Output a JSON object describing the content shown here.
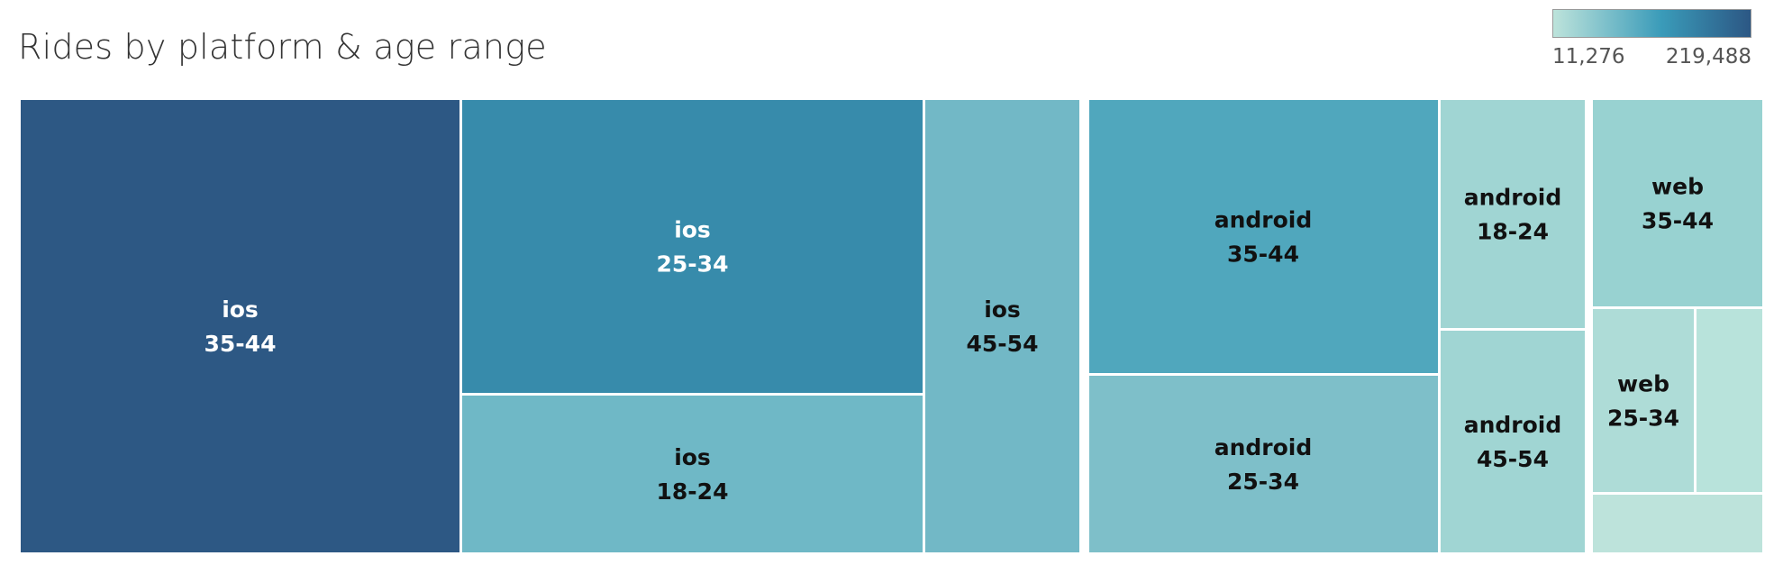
{
  "title": "Rides by platform & age range",
  "legend": {
    "min_label": "11,276",
    "max_label": "219,488",
    "color_low": "#bde3db",
    "color_mid": "#3a9bb9",
    "color_high": "#2c5784"
  },
  "chart_data": {
    "type": "treemap",
    "title": "Rides by platform & age range",
    "color_range": [
      11276,
      219488
    ],
    "groups": [
      {
        "name": "ios",
        "tiles": [
          {
            "platform": "ios",
            "age": "35-44",
            "value": 219488,
            "color": "#2d5884",
            "text_color": "#ffffff"
          },
          {
            "platform": "ios",
            "age": "25-34",
            "value": 146000,
            "color": "#378bab",
            "text_color": "#ffffff"
          },
          {
            "platform": "ios",
            "age": "18-24",
            "value": 79000,
            "color": "#6fb8c6",
            "text_color": "#111111"
          },
          {
            "platform": "ios",
            "age": "45-54",
            "value": 75000,
            "color": "#72b8c6",
            "text_color": "#111111"
          }
        ]
      },
      {
        "name": "android",
        "tiles": [
          {
            "platform": "android",
            "age": "35-44",
            "value": 105000,
            "color": "#50a7bd",
            "text_color": "#111111"
          },
          {
            "platform": "android",
            "age": "25-34",
            "value": 70000,
            "color": "#7ebfc9",
            "text_color": "#111111"
          },
          {
            "platform": "android",
            "age": "18-24",
            "value": 36000,
            "color": "#a0d5d3",
            "text_color": "#111111"
          },
          {
            "platform": "android",
            "age": "45-54",
            "value": 35000,
            "color": "#a0d5d3",
            "text_color": "#111111"
          }
        ]
      },
      {
        "name": "web",
        "tiles": [
          {
            "platform": "web",
            "age": "35-44",
            "value": 27000,
            "color": "#98d2d1",
            "text_color": "#111111"
          },
          {
            "platform": "web",
            "age": "25-34",
            "value": 15000,
            "color": "#aedcd7",
            "text_color": "#111111"
          },
          {
            "platform": "web",
            "age": "",
            "value": 12000,
            "color": "#b8e3db",
            "text_color": "#111111"
          },
          {
            "platform": "web",
            "age": "",
            "value": 11276,
            "color": "#bde3db",
            "text_color": "#111111"
          }
        ]
      }
    ]
  }
}
